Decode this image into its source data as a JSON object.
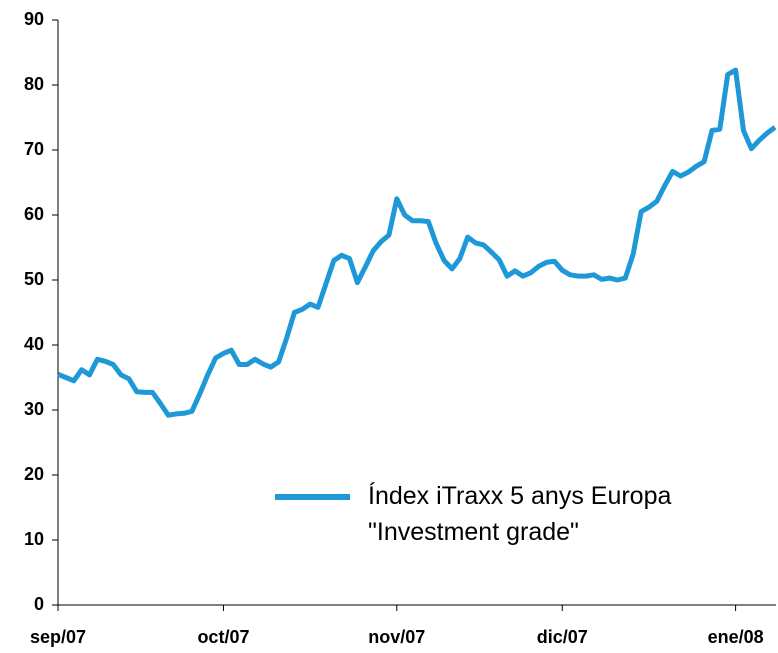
{
  "chart_data": {
    "type": "line",
    "categories": [
      "sep/07",
      null,
      null,
      null,
      null,
      null,
      null,
      null,
      null,
      null,
      null,
      null,
      null,
      null,
      null,
      null,
      null,
      null,
      null,
      null,
      null,
      "oct/07",
      null,
      null,
      null,
      null,
      null,
      null,
      null,
      null,
      null,
      null,
      null,
      null,
      null,
      null,
      null,
      null,
      null,
      null,
      null,
      null,
      null,
      "nov/07",
      null,
      null,
      null,
      null,
      null,
      null,
      null,
      null,
      null,
      null,
      null,
      null,
      null,
      null,
      null,
      null,
      null,
      null,
      null,
      null,
      "dic/07",
      null,
      null,
      null,
      null,
      null,
      null,
      null,
      null,
      null,
      null,
      null,
      null,
      null,
      null,
      null,
      null,
      null,
      null,
      null,
      null,
      null,
      "ene/08",
      null,
      null,
      null,
      null,
      null
    ],
    "series": [
      {
        "name": "Índex iTraxx 5 anys Europa\n\"Investment grade\"",
        "color": "#1e98d7",
        "values": [
          35.5,
          35,
          34.5,
          36.2,
          35.4,
          37.8,
          37.5,
          37,
          35.4,
          34.8,
          32.8,
          32.7,
          32.7,
          31,
          29.2,
          29.4,
          29.5,
          29.8,
          32.5,
          35.4,
          38,
          38.7,
          39.2,
          37,
          37,
          37.8,
          37.1,
          36.6,
          37.4,
          41,
          45,
          45.5,
          46.3,
          45.8,
          49.4,
          53,
          53.8,
          53.3,
          49.6,
          52,
          54.5,
          55.9,
          56.9,
          62.5,
          60,
          59.1,
          59.1,
          59,
          55.6,
          53,
          51.7,
          53.3,
          56.6,
          55.7,
          55.4,
          54.3,
          53.1,
          50.6,
          51.4,
          50.6,
          51.1,
          52.1,
          52.7,
          52.9,
          51.5,
          50.8,
          50.6,
          50.6,
          50.8,
          50.1,
          50.3,
          50,
          50.3,
          54,
          60.5,
          61.2,
          62.1,
          64.5,
          66.7,
          66,
          66.6,
          67.5,
          68.2,
          73,
          73.2,
          81.6,
          82.3,
          73,
          70.2,
          71.5,
          72.6,
          73.5
        ]
      }
    ],
    "ylim": [
      0,
      90
    ],
    "yticks": [
      0,
      10,
      20,
      30,
      40,
      50,
      60,
      70,
      80,
      90
    ],
    "grid": false,
    "legend": "bottom-right"
  }
}
